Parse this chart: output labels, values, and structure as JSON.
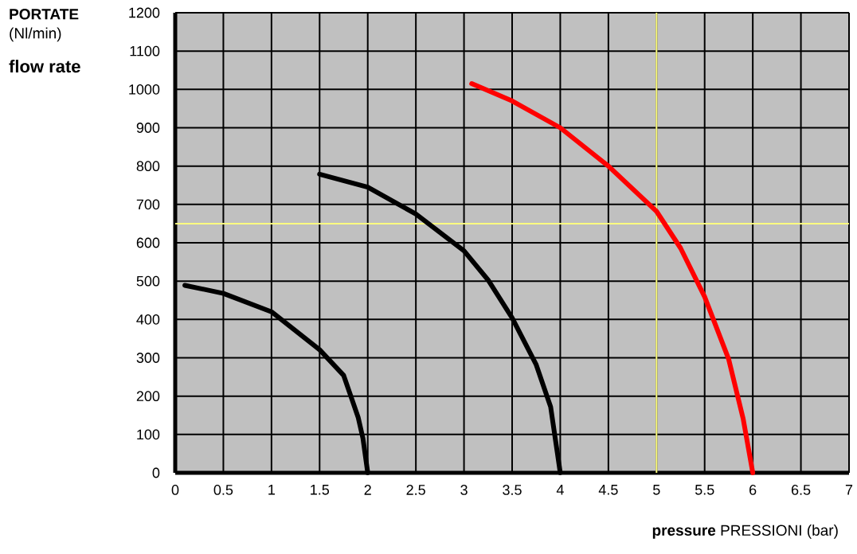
{
  "chart_data": {
    "type": "line",
    "xlabel": "**pressure** PRESSIONI (bar)",
    "ylabel": "**PORTATE** (Nl/min)",
    "annotations": [
      "flow rate"
    ],
    "xlim": [
      0,
      7
    ],
    "ylim": [
      0,
      1200
    ],
    "xticks": [
      0,
      0.5,
      1,
      1.5,
      2,
      2.5,
      3,
      3.5,
      4,
      4.5,
      5,
      5.5,
      6,
      6.5,
      7
    ],
    "yticks": [
      0,
      100,
      200,
      300,
      400,
      500,
      600,
      700,
      800,
      900,
      1000,
      1100,
      1200
    ],
    "grid": true,
    "ref_lines": [
      {
        "axis": "x",
        "value": 5,
        "color": "#ffff80"
      },
      {
        "axis": "y",
        "value": 650,
        "color": "#ffff80"
      }
    ],
    "series": [
      {
        "color": "#000000",
        "x": [
          0.1,
          0.5,
          1,
          1.5,
          1.75,
          1.9,
          1.95,
          2
        ],
        "values": [
          489,
          468,
          420,
          321,
          254,
          145,
          90,
          0
        ]
      },
      {
        "color": "#000000",
        "x": [
          1.5,
          2,
          2.5,
          3,
          3.25,
          3.5,
          3.75,
          3.9,
          4
        ],
        "values": [
          779,
          745,
          675,
          579,
          503,
          404,
          282,
          172,
          0
        ]
      },
      {
        "color": "#ff0000",
        "x": [
          3.08,
          3.5,
          4,
          4.5,
          5,
          5.25,
          5.5,
          5.75,
          5.9,
          6
        ],
        "values": [
          1015,
          970,
          900,
          800,
          682,
          586,
          459,
          296,
          141,
          0
        ]
      }
    ]
  }
}
